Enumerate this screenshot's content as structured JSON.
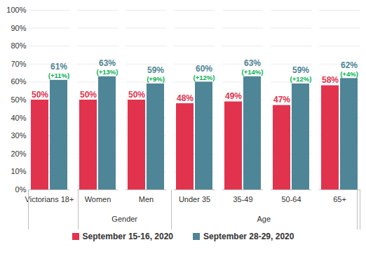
{
  "chart_data": {
    "type": "bar",
    "categories": [
      "Victorians 18+",
      "Women",
      "Men",
      "Under 35",
      "35-49",
      "50-64",
      "65+"
    ],
    "category_groups": [
      {
        "label": "Gender",
        "categories": [
          "Women",
          "Men"
        ]
      },
      {
        "label": "Age",
        "categories": [
          "Under 35",
          "35-49",
          "50-64",
          "65+"
        ]
      }
    ],
    "series": [
      {
        "name": "September 15-16, 2020",
        "color": "#e2334e",
        "values": [
          50,
          50,
          50,
          48,
          49,
          47,
          58
        ],
        "value_labels": [
          "50%",
          "50%",
          "50%",
          "48%",
          "49%",
          "47%",
          "58%"
        ]
      },
      {
        "name": "September 28-29, 2020",
        "color": "#4e8597",
        "values": [
          61,
          63,
          59,
          60,
          63,
          59,
          62
        ],
        "value_labels": [
          "61%",
          "63%",
          "59%",
          "60%",
          "63%",
          "59%",
          "62%"
        ]
      }
    ],
    "annotations": {
      "color": "#00b050",
      "values": [
        11,
        13,
        9,
        12,
        14,
        12,
        4
      ],
      "value_labels": [
        "(+11%)",
        "(+13%)",
        "(+9%)",
        "(+12%)",
        "(+14%)",
        "(+12%)",
        "(+4%)"
      ]
    },
    "ylim": [
      0,
      100
    ],
    "yticks": [
      {
        "value": 0,
        "label": "0%"
      },
      {
        "value": 10,
        "label": "10%"
      },
      {
        "value": 20,
        "label": "20%"
      },
      {
        "value": 30,
        "label": "30%"
      },
      {
        "value": 40,
        "label": "40%"
      },
      {
        "value": 50,
        "label": "50%"
      },
      {
        "value": 60,
        "label": "60%"
      },
      {
        "value": 70,
        "label": "70%"
      },
      {
        "value": 80,
        "label": "80%"
      },
      {
        "value": 90,
        "label": "90%"
      },
      {
        "value": 100,
        "label": "100%"
      }
    ],
    "grid": true,
    "data_labels": true,
    "legend": "bottom"
  }
}
